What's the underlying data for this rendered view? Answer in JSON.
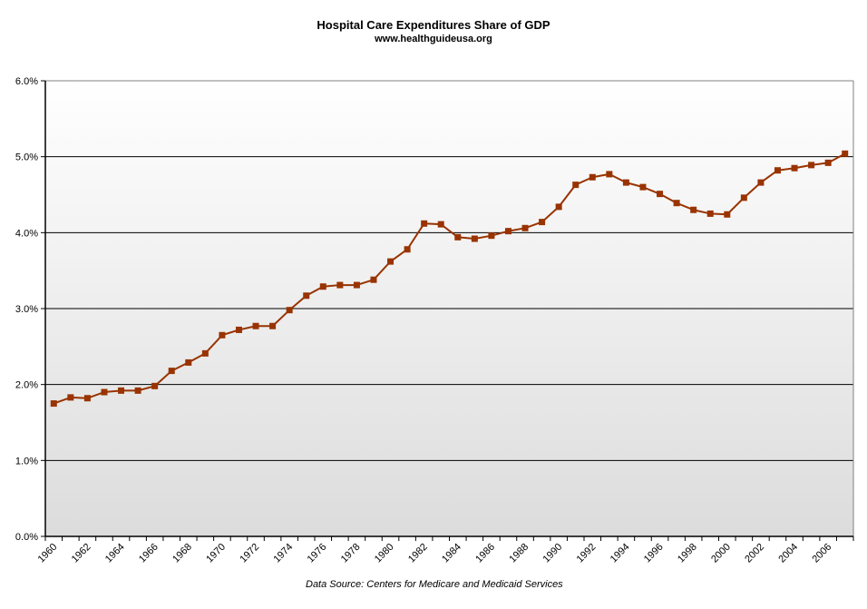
{
  "chart_data": {
    "type": "line",
    "title": "Hospital Care Expenditures Share of GDP",
    "subtitle": "www.healthguideusa.org",
    "source": "Data Source: Centers for Medicare and Medicaid Services",
    "xlabel": "",
    "ylabel": "",
    "ylim": [
      0,
      6
    ],
    "yticks": [
      "0.0%",
      "1.0%",
      "2.0%",
      "3.0%",
      "4.0%",
      "5.0%",
      "6.0%"
    ],
    "grid": true,
    "legend": "none",
    "series_color": "#993300",
    "categories": [
      "1960",
      "1961",
      "1962",
      "1963",
      "1964",
      "1965",
      "1966",
      "1967",
      "1968",
      "1969",
      "1970",
      "1971",
      "1972",
      "1973",
      "1974",
      "1975",
      "1976",
      "1977",
      "1978",
      "1979",
      "1980",
      "1981",
      "1982",
      "1983",
      "1984",
      "1985",
      "1986",
      "1987",
      "1988",
      "1989",
      "1990",
      "1991",
      "1992",
      "1993",
      "1994",
      "1995",
      "1996",
      "1997",
      "1998",
      "1999",
      "2000",
      "2001",
      "2002",
      "2003",
      "2004",
      "2005",
      "2006",
      "2007"
    ],
    "xtick_labels": [
      "1960",
      "1962",
      "1964",
      "1966",
      "1968",
      "1970",
      "1972",
      "1974",
      "1976",
      "1978",
      "1980",
      "1982",
      "1984",
      "1986",
      "1988",
      "1990",
      "1992",
      "1994",
      "1996",
      "1998",
      "2000",
      "2002",
      "2004",
      "2006"
    ],
    "series": [
      {
        "name": "Hospital Care Share of GDP (%)",
        "values": [
          1.75,
          1.83,
          1.82,
          1.9,
          1.92,
          1.92,
          1.98,
          2.18,
          2.29,
          2.41,
          2.65,
          2.72,
          2.77,
          2.77,
          2.98,
          3.17,
          3.29,
          3.31,
          3.31,
          3.38,
          3.62,
          3.78,
          4.12,
          4.11,
          3.94,
          3.92,
          3.96,
          4.02,
          4.06,
          4.14,
          4.34,
          4.63,
          4.73,
          4.77,
          4.66,
          4.6,
          4.51,
          4.39,
          4.3,
          4.25,
          4.24,
          4.46,
          4.66,
          4.82,
          4.85,
          4.89,
          4.92,
          5.04
        ]
      }
    ]
  }
}
